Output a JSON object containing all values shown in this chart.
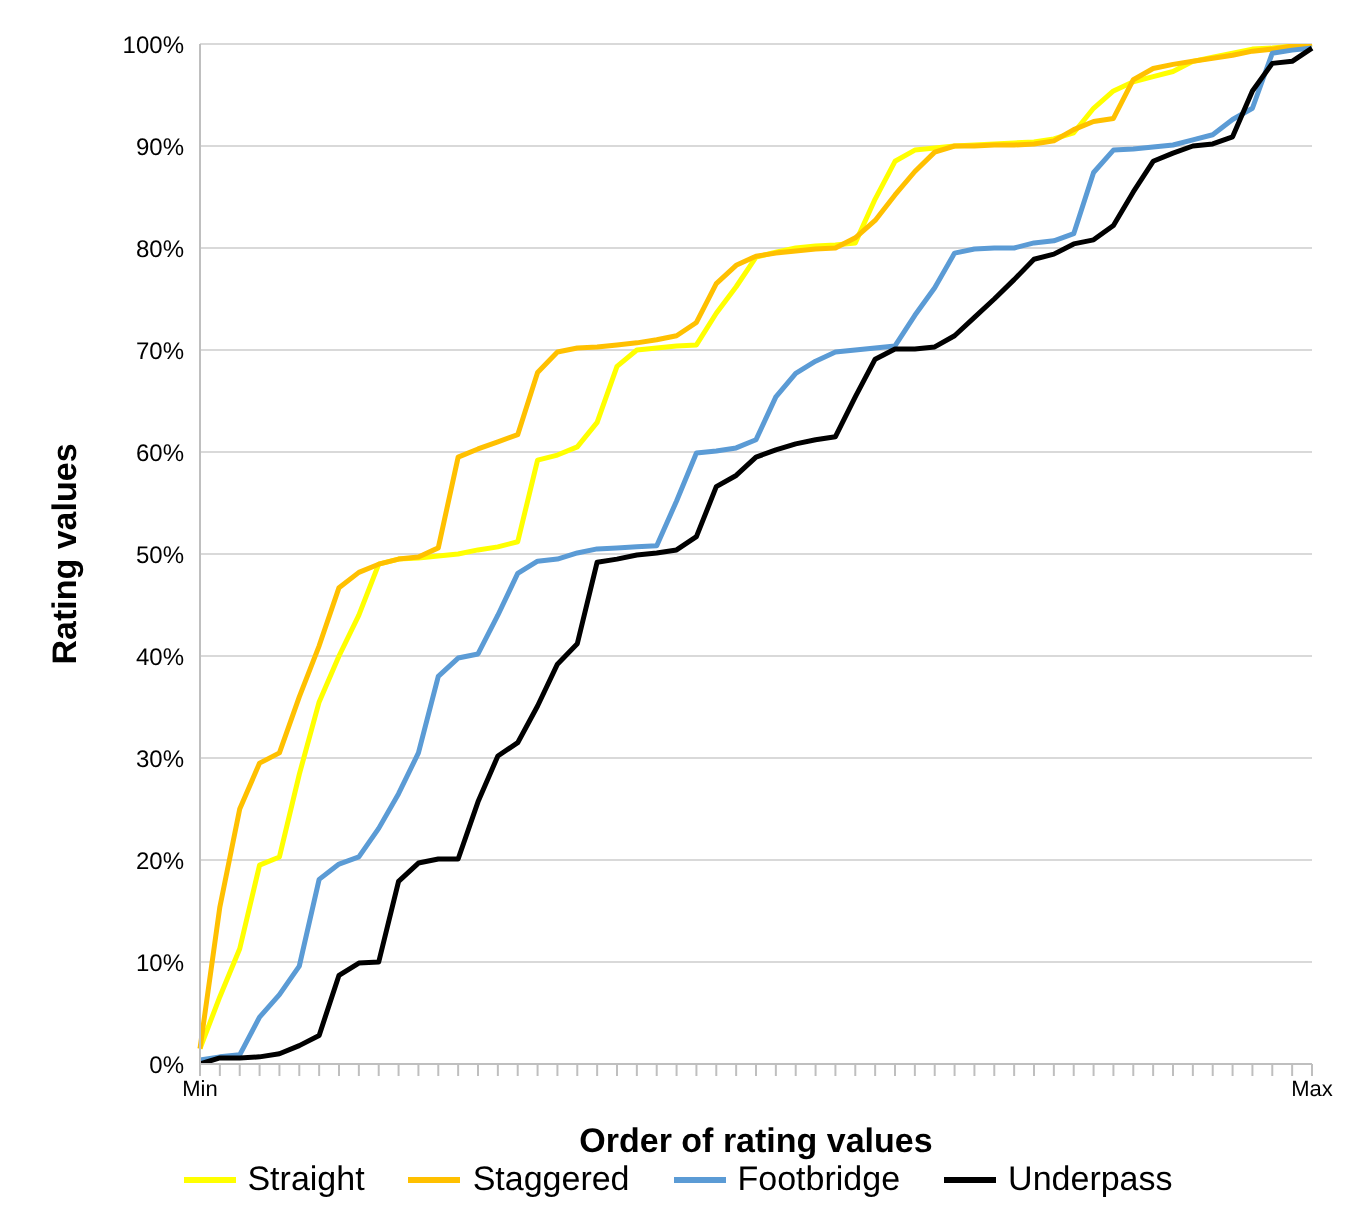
{
  "chart_data": {
    "type": "line",
    "xlabel": "Order of rating values",
    "ylabel": "Rating values",
    "categories": [
      "Min",
      null,
      null,
      null,
      null,
      null,
      null,
      null,
      null,
      null,
      null,
      null,
      null,
      null,
      null,
      null,
      null,
      null,
      null,
      null,
      null,
      null,
      null,
      null,
      null,
      null,
      null,
      null,
      null,
      null,
      null,
      null,
      null,
      null,
      null,
      null,
      null,
      null,
      null,
      null,
      null,
      null,
      null,
      null,
      null,
      null,
      null,
      null,
      null,
      null,
      null,
      null,
      null,
      null,
      null,
      null,
      "Max"
    ],
    "ylim": [
      0,
      100
    ],
    "yticks": [
      {
        "value": 0,
        "label": "0%"
      },
      {
        "value": 10,
        "label": "10%"
      },
      {
        "value": 20,
        "label": "20%"
      },
      {
        "value": 30,
        "label": "30%"
      },
      {
        "value": 40,
        "label": "40%"
      },
      {
        "value": 50,
        "label": "50%"
      },
      {
        "value": 60,
        "label": "60%"
      },
      {
        "value": 70,
        "label": "70%"
      },
      {
        "value": 80,
        "label": "80%"
      },
      {
        "value": 90,
        "label": "90%"
      },
      {
        "value": 100,
        "label": "100%"
      }
    ],
    "grid": "y",
    "legend": "bottom",
    "marker": "none",
    "line_style": "solid",
    "series": [
      {
        "name": "Straight",
        "color": "#ffff00",
        "values": [
          1.5,
          6.6,
          11.3,
          19.5,
          20.3,
          28.4,
          35.5,
          40,
          44,
          49,
          49.5,
          49.6,
          49.8,
          50,
          50.4,
          50.7,
          51.2,
          59.2,
          59.7,
          60.5,
          62.9,
          68.4,
          70,
          70.2,
          70.4,
          70.5,
          73.6,
          76.2,
          79.1,
          79.6,
          80,
          80.2,
          80.3,
          80.5,
          84.8,
          88.5,
          89.6,
          89.8,
          90,
          90.1,
          90.2,
          90.3,
          90.4,
          90.7,
          91.3,
          93.7,
          95.4,
          96.3,
          96.8,
          97.3,
          98.3,
          98.7,
          99.1,
          99.5,
          99.6,
          99.8,
          100
        ]
      },
      {
        "name": "Staggered",
        "color": "#ffc000",
        "values": [
          1.5,
          15.4,
          25,
          29.5,
          30.5,
          36,
          41,
          46.7,
          48.2,
          49,
          49.5,
          49.7,
          50.6,
          59.5,
          60.3,
          61,
          61.7,
          67.8,
          69.8,
          70.2,
          70.3,
          70.5,
          70.7,
          71,
          71.4,
          72.7,
          76.5,
          78.3,
          79.2,
          79.5,
          79.7,
          79.9,
          80,
          81,
          82.7,
          85.2,
          87.5,
          89.4,
          90,
          90,
          90.1,
          90.1,
          90.2,
          90.5,
          91.6,
          92.4,
          92.7,
          96.5,
          97.6,
          98,
          98.3,
          98.6,
          98.9,
          99.3,
          99.5,
          99.8,
          100
        ]
      },
      {
        "name": "Footbridge",
        "color": "#5b9bd5",
        "values": [
          0.4,
          0.7,
          0.9,
          4.6,
          6.8,
          9.6,
          18.1,
          19.6,
          20.3,
          23.1,
          26.5,
          30.5,
          38,
          39.8,
          40.2,
          44,
          48.1,
          49.3,
          49.5,
          50.1,
          50.5,
          50.6,
          50.7,
          50.8,
          55.2,
          59.9,
          60.1,
          60.4,
          61.2,
          65.4,
          67.7,
          68.9,
          69.8,
          70,
          70.2,
          70.4,
          73.4,
          76.1,
          79.5,
          79.9,
          80,
          80,
          80.5,
          80.7,
          81.4,
          87.4,
          89.6,
          89.7,
          89.9,
          90.1,
          90.6,
          91.1,
          92.6,
          93.7,
          99.1,
          99.4,
          99.6
        ]
      },
      {
        "name": "Underpass",
        "color": "#000000",
        "values": [
          0,
          0.6,
          0.6,
          0.7,
          1,
          1.8,
          2.8,
          8.7,
          9.9,
          10,
          17.9,
          19.7,
          20.1,
          20.1,
          25.7,
          30.2,
          31.5,
          35.1,
          39.2,
          41.2,
          49.2,
          49.5,
          49.9,
          50.1,
          50.4,
          51.7,
          56.6,
          57.7,
          59.5,
          60.2,
          60.8,
          61.2,
          61.5,
          65.4,
          69.1,
          70.1,
          70.1,
          70.3,
          71.4,
          73.2,
          75,
          76.9,
          78.9,
          79.4,
          80.4,
          80.8,
          82.2,
          85.5,
          88.5,
          89.3,
          90,
          90.2,
          90.9,
          95.4,
          98.1,
          98.3,
          99.6
        ]
      }
    ]
  }
}
